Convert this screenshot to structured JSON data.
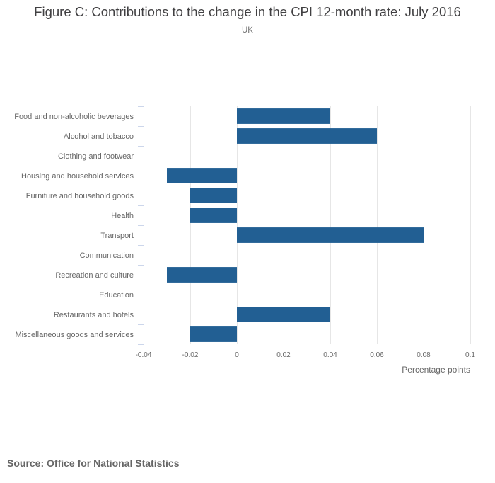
{
  "chart_data": {
    "type": "bar",
    "orientation": "horizontal",
    "title": "Figure C: Contributions to the change in the CPI 12-month rate: July 2016",
    "subtitle": "UK",
    "categories": [
      "Food and non-alcoholic beverages",
      "Alcohol and tobacco",
      "Clothing and footwear",
      "Housing and household services",
      "Furniture and household goods",
      "Health",
      "Transport",
      "Communication",
      "Recreation and culture",
      "Education",
      "Restaurants and hotels",
      "Miscellaneous goods and services"
    ],
    "values": [
      0.04,
      0.06,
      0,
      -0.03,
      -0.02,
      -0.02,
      0.08,
      0,
      -0.03,
      0,
      0.04,
      -0.02
    ],
    "xlabel": "Percentage points",
    "ylabel": "",
    "xlim": [
      -0.04,
      0.1
    ],
    "xticks": [
      -0.04,
      -0.02,
      0,
      0.02,
      0.04,
      0.06,
      0.08,
      0.1
    ],
    "xtick_labels": [
      "-0.04",
      "-0.02",
      "0",
      "0.02",
      "0.04",
      "0.06",
      "0.08",
      "0.1"
    ],
    "grid": "vertical",
    "legend": "none",
    "bar_color": "#225f93",
    "grid_color": "#e6e6e6",
    "axis_color": "#ccd6eb"
  },
  "footer": {
    "source": "Source: Office for National Statistics"
  }
}
